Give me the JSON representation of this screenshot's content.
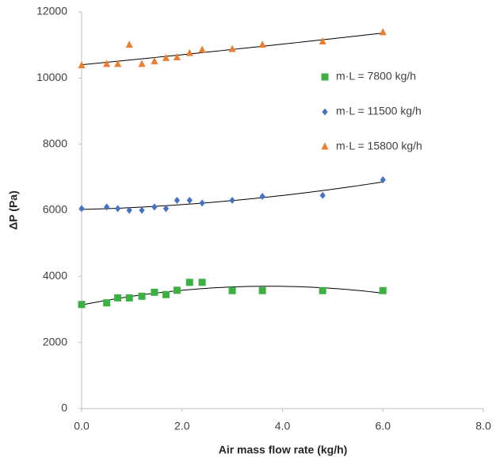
{
  "chart_data": {
    "type": "scatter",
    "x_label": "Air mass flow rate (kg/h)",
    "y_label": "ΔP (Pa)",
    "xlim": [
      0,
      8
    ],
    "xticks": [
      {
        "value": 0,
        "label": "0.0"
      },
      {
        "value": 2,
        "label": "2.0"
      },
      {
        "value": 4,
        "label": "4.0"
      },
      {
        "value": 6,
        "label": "6.0"
      },
      {
        "value": 8,
        "label": "8.0"
      }
    ],
    "ylim": [
      0,
      12000
    ],
    "yticks": [
      0,
      2000,
      4000,
      6000,
      8000,
      10000,
      12000
    ],
    "grid": false,
    "legend_position": "right",
    "trendline": {
      "type": "polynomial",
      "order": 2
    },
    "series": [
      {
        "name": "m·L = 7800 kg/h",
        "color": "#3cb043",
        "marker": "square",
        "x": [
          0,
          0.5,
          0.72,
          0.95,
          1.2,
          1.45,
          1.68,
          1.9,
          2.15,
          2.4,
          3.0,
          3.6,
          4.8,
          6.0
        ],
        "values": [
          3150,
          3200,
          3350,
          3350,
          3400,
          3520,
          3450,
          3580,
          3820,
          3820,
          3570,
          3570,
          3570,
          3570
        ]
      },
      {
        "name": "m·L = 11500 kg/h",
        "color": "#4472c4",
        "marker": "diamond",
        "x": [
          0,
          0.5,
          0.72,
          0.95,
          1.2,
          1.45,
          1.68,
          1.9,
          2.15,
          2.4,
          3.0,
          3.6,
          4.8,
          6.0
        ],
        "values": [
          6050,
          6100,
          6050,
          6000,
          6000,
          6100,
          6050,
          6300,
          6300,
          6220,
          6300,
          6420,
          6450,
          6920
        ]
      },
      {
        "name": "m·L = 15800 kg/h",
        "color": "#ed7d31",
        "marker": "triangle",
        "x": [
          0,
          0.5,
          0.72,
          0.95,
          1.2,
          1.45,
          1.68,
          1.9,
          2.15,
          2.4,
          3.0,
          3.6,
          4.8,
          6.0
        ],
        "values": [
          10380,
          10420,
          10420,
          11000,
          10420,
          10500,
          10600,
          10620,
          10750,
          10850,
          10870,
          11000,
          11100,
          11380
        ]
      }
    ]
  }
}
